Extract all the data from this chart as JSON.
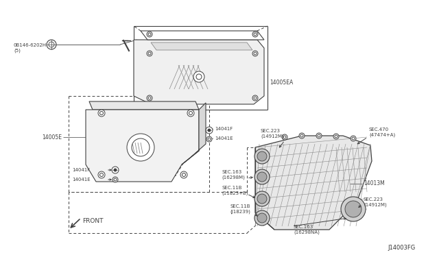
{
  "bg_color": "#ffffff",
  "fig_width": 6.4,
  "fig_height": 3.72,
  "dpi": 100,
  "gray": "#404040",
  "lgray": "#888888",
  "labels": {
    "part_0B146": "0B146-6202H\n(5)",
    "part_14005EA": "14005EA",
    "part_14005E": "14005E",
    "part_14041F_top": "14041F",
    "part_14041E_top": "14041E",
    "part_14041F_bot": "14041F",
    "part_14041E_bot": "14041E",
    "part_14013M": "14013M",
    "sec_223_top": "SEC.223\n(14912M)",
    "sec_470": "SEC.470\n(47474+A)",
    "sec_163_top": "SEC.163\n(16298M)",
    "sec_11B_top": "SEC.11B\n(11823+B)",
    "sec_11B_bot": "SEC.11B\n(J18239)",
    "sec_163_bot": "SEC.163\n(16298NA)",
    "sec_223_bot": "SEC.223\n(14912M)",
    "front_label": "FRONT",
    "fig_label": "J14003FG"
  }
}
